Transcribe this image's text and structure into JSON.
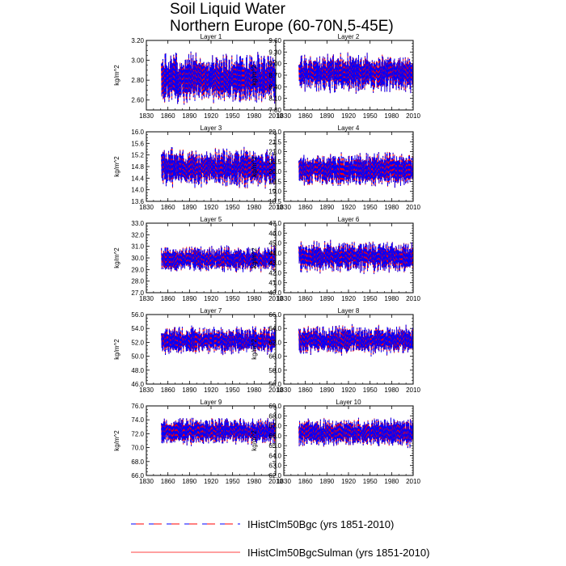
{
  "title": [
    "Soil Liquid Water",
    "Northern Europe (60-70N,5-45E)"
  ],
  "legend": [
    {
      "label": "IHistClm50Bgc (yrs 1851-2010)",
      "color": "#0000ff",
      "style": "dashed"
    },
    {
      "label": "IHistClm50BgcSulman (yrs 1851-2010)",
      "color": "#ff0000",
      "style": "solid"
    }
  ],
  "chart_data": [
    {
      "type": "line",
      "title": "Layer 1",
      "ylabel": "kg/m^2",
      "xlim": [
        1830,
        2010
      ],
      "xticks": [
        1830,
        1860,
        1890,
        1920,
        1950,
        1980,
        2010
      ],
      "xtick_labels": [
        "1830",
        "1860",
        "1890",
        "1920",
        "1950",
        "1980",
        "2010"
      ],
      "ylim": [
        2.5,
        3.2
      ],
      "yticks": [
        "2.60",
        "2.80",
        "3.00",
        "3.20"
      ],
      "ytick_vals": [
        2.6,
        2.8,
        3.0,
        3.2
      ],
      "x_start": 1851,
      "x_end": 2010,
      "series": [
        {
          "name": "IHistClm50Bgc (yrs 1851-2010)",
          "mean": 2.82,
          "amp": 0.22,
          "low": 2.52,
          "high": 3.13,
          "seed": 1
        },
        {
          "name": "IHistClm50BgcSulman (yrs 1851-2010)",
          "mean": 2.82,
          "amp": 0.22,
          "low": 2.52,
          "high": 3.13,
          "seed": 1
        }
      ]
    },
    {
      "type": "line",
      "title": "Layer 2",
      "ylabel": "kg/m^2",
      "xlim": [
        1830,
        2010
      ],
      "xticks": [
        1830,
        1860,
        1890,
        1920,
        1950,
        1980,
        2010
      ],
      "xtick_labels": [
        "1830",
        "1860",
        "1890",
        "1920",
        "1950",
        "1980",
        "2010"
      ],
      "ylim": [
        7.8,
        9.6
      ],
      "yticks": [
        "7.80",
        "8.10",
        "8.40",
        "8.70",
        "9.00",
        "9.30",
        "9.60"
      ],
      "ytick_vals": [
        7.8,
        8.1,
        8.4,
        8.7,
        9.0,
        9.3,
        9.6
      ],
      "x_start": 1851,
      "x_end": 2010,
      "series": [
        {
          "name": "IHistClm50Bgc (yrs 1851-2010)",
          "mean": 8.75,
          "amp": 0.45,
          "low": 8.0,
          "high": 9.5,
          "seed": 2
        },
        {
          "name": "IHistClm50BgcSulman (yrs 1851-2010)",
          "mean": 8.75,
          "amp": 0.45,
          "low": 8.0,
          "high": 9.5,
          "seed": 2
        }
      ]
    },
    {
      "type": "line",
      "title": "Layer 3",
      "ylabel": "kg/m^2",
      "xlim": [
        1830,
        2010
      ],
      "xticks": [
        1830,
        1860,
        1890,
        1920,
        1950,
        1980,
        2010
      ],
      "xtick_labels": [
        "1830",
        "1860",
        "1890",
        "1920",
        "1950",
        "1980",
        "2010"
      ],
      "ylim": [
        13.6,
        16.0
      ],
      "yticks": [
        "13.6",
        "14.0",
        "14.4",
        "14.8",
        "15.2",
        "15.6",
        "16.0"
      ],
      "ytick_vals": [
        13.6,
        14.0,
        14.4,
        14.8,
        15.2,
        15.6,
        16.0
      ],
      "x_start": 1851,
      "x_end": 2010,
      "series": [
        {
          "name": "IHistClm50Bgc (yrs 1851-2010)",
          "mean": 14.75,
          "amp": 0.6,
          "low": 13.8,
          "high": 15.9,
          "seed": 3
        },
        {
          "name": "IHistClm50BgcSulman (yrs 1851-2010)",
          "mean": 14.75,
          "amp": 0.6,
          "low": 13.8,
          "high": 15.9,
          "seed": 3
        }
      ]
    },
    {
      "type": "line",
      "title": "Layer 4",
      "ylabel": "kg/m^2",
      "xlim": [
        1830,
        2010
      ],
      "xticks": [
        1830,
        1860,
        1890,
        1920,
        1950,
        1980,
        2010
      ],
      "xtick_labels": [
        "1830",
        "1860",
        "1890",
        "1920",
        "1950",
        "1980",
        "2010"
      ],
      "ylim": [
        18.5,
        22.0
      ],
      "yticks": [
        "18.5",
        "19.0",
        "19.5",
        "20.0",
        "20.5",
        "21.0",
        "21.5",
        "22.0"
      ],
      "ytick_vals": [
        18.5,
        19.0,
        19.5,
        20.0,
        20.5,
        21.0,
        21.5,
        22.0
      ],
      "x_start": 1851,
      "x_end": 2010,
      "series": [
        {
          "name": "IHistClm50Bgc (yrs 1851-2010)",
          "mean": 20.1,
          "amp": 0.75,
          "low": 18.9,
          "high": 21.7,
          "seed": 4
        },
        {
          "name": "IHistClm50BgcSulman (yrs 1851-2010)",
          "mean": 20.1,
          "amp": 0.75,
          "low": 18.9,
          "high": 21.7,
          "seed": 4
        }
      ]
    },
    {
      "type": "line",
      "title": "Layer 5",
      "ylabel": "kg/m^2",
      "xlim": [
        1830,
        2010
      ],
      "xticks": [
        1830,
        1860,
        1890,
        1920,
        1950,
        1980,
        2010
      ],
      "xtick_labels": [
        "1830",
        "1860",
        "1890",
        "1920",
        "1950",
        "1980",
        "2010"
      ],
      "ylim": [
        27.0,
        33.0
      ],
      "yticks": [
        "27.0",
        "28.0",
        "29.0",
        "30.0",
        "31.0",
        "32.0",
        "33.0"
      ],
      "ytick_vals": [
        27,
        28,
        29,
        30,
        31,
        32,
        33
      ],
      "x_start": 1851,
      "x_end": 2010,
      "series": [
        {
          "name": "IHistClm50Bgc (yrs 1851-2010)",
          "mean": 29.9,
          "amp": 1.0,
          "low": 27.9,
          "high": 31.7,
          "seed": 5
        },
        {
          "name": "IHistClm50BgcSulman (yrs 1851-2010)",
          "mean": 29.9,
          "amp": 1.0,
          "low": 27.9,
          "high": 31.7,
          "seed": 5
        }
      ]
    },
    {
      "type": "line",
      "title": "Layer 6",
      "ylabel": "kg/m^2",
      "xlim": [
        1830,
        2010
      ],
      "xticks": [
        1830,
        1860,
        1890,
        1920,
        1950,
        1980,
        2010
      ],
      "xtick_labels": [
        "1830",
        "1860",
        "1890",
        "1920",
        "1950",
        "1980",
        "2010"
      ],
      "ylim": [
        40.0,
        47.0
      ],
      "yticks": [
        "40.0",
        "41.0",
        "42.0",
        "43.0",
        "44.0",
        "45.0",
        "46.0",
        "47.0"
      ],
      "ytick_vals": [
        40,
        41,
        42,
        43,
        44,
        45,
        46,
        47
      ],
      "x_start": 1851,
      "x_end": 2010,
      "series": [
        {
          "name": "IHistClm50Bgc (yrs 1851-2010)",
          "mean": 43.6,
          "amp": 1.4,
          "low": 40.7,
          "high": 46.3,
          "seed": 6
        },
        {
          "name": "IHistClm50BgcSulman (yrs 1851-2010)",
          "mean": 43.6,
          "amp": 1.4,
          "low": 40.7,
          "high": 46.3,
          "seed": 6
        }
      ]
    },
    {
      "type": "line",
      "title": "Layer 7",
      "ylabel": "kg/m^2",
      "xlim": [
        1830,
        2010
      ],
      "xticks": [
        1830,
        1860,
        1890,
        1920,
        1950,
        1980,
        2010
      ],
      "xtick_labels": [
        "1830",
        "1860",
        "1890",
        "1920",
        "1950",
        "1980",
        "2010"
      ],
      "ylim": [
        46.0,
        56.0
      ],
      "yticks": [
        "46.0",
        "48.0",
        "50.0",
        "52.0",
        "54.0",
        "56.0"
      ],
      "ytick_vals": [
        46,
        48,
        50,
        52,
        54,
        56
      ],
      "x_start": 1851,
      "x_end": 2010,
      "series": [
        {
          "name": "IHistClm50Bgc (yrs 1851-2010)",
          "mean": 52.3,
          "amp": 1.8,
          "low": 48.0,
          "high": 54.6,
          "seed": 7
        },
        {
          "name": "IHistClm50BgcSulman (yrs 1851-2010)",
          "mean": 52.3,
          "amp": 1.8,
          "low": 48.0,
          "high": 54.6,
          "seed": 7
        }
      ]
    },
    {
      "type": "line",
      "title": "Layer 8",
      "ylabel": "kg/m^2",
      "xlim": [
        1830,
        2010
      ],
      "xticks": [
        1830,
        1860,
        1890,
        1920,
        1950,
        1980,
        2010
      ],
      "xtick_labels": [
        "1830",
        "1860",
        "1890",
        "1920",
        "1950",
        "1980",
        "2010"
      ],
      "ylim": [
        56.0,
        66.0
      ],
      "yticks": [
        "56.0",
        "58.0",
        "60.0",
        "62.0",
        "64.0",
        "66.0"
      ],
      "ytick_vals": [
        56,
        58,
        60,
        62,
        64,
        66
      ],
      "x_start": 1851,
      "x_end": 2010,
      "series": [
        {
          "name": "IHistClm50Bgc (yrs 1851-2010)",
          "mean": 62.3,
          "amp": 1.9,
          "low": 58.0,
          "high": 64.8,
          "seed": 8
        },
        {
          "name": "IHistClm50BgcSulman (yrs 1851-2010)",
          "mean": 62.3,
          "amp": 1.9,
          "low": 58.0,
          "high": 64.8,
          "seed": 8
        }
      ]
    },
    {
      "type": "line",
      "title": "Layer 9",
      "ylabel": "kg/m^2",
      "xlim": [
        1830,
        2010
      ],
      "xticks": [
        1830,
        1860,
        1890,
        1920,
        1950,
        1980,
        2010
      ],
      "xtick_labels": [
        "1830",
        "1860",
        "1890",
        "1920",
        "1950",
        "1980",
        "2010"
      ],
      "ylim": [
        66.0,
        76.0
      ],
      "yticks": [
        "66.0",
        "68.0",
        "70.0",
        "72.0",
        "74.0",
        "76.0"
      ],
      "ytick_vals": [
        66,
        68,
        70,
        72,
        74,
        76
      ],
      "x_start": 1851,
      "x_end": 2010,
      "series": [
        {
          "name": "IHistClm50Bgc (yrs 1851-2010)",
          "mean": 72.3,
          "amp": 1.8,
          "low": 67.8,
          "high": 74.3,
          "seed": 9
        },
        {
          "name": "IHistClm50BgcSulman (yrs 1851-2010)",
          "mean": 72.3,
          "amp": 1.8,
          "low": 67.8,
          "high": 74.3,
          "seed": 9
        }
      ]
    },
    {
      "type": "line",
      "title": "Layer 10",
      "ylabel": "kg/m^2",
      "xlim": [
        1830,
        2010
      ],
      "xticks": [
        1830,
        1860,
        1890,
        1920,
        1950,
        1980,
        2010
      ],
      "xtick_labels": [
        "1830",
        "1860",
        "1890",
        "1920",
        "1950",
        "1980",
        "2010"
      ],
      "ylim": [
        62.0,
        69.0
      ],
      "yticks": [
        "62.0",
        "63.0",
        "64.0",
        "65.0",
        "66.0",
        "67.0",
        "68.0",
        "69.0"
      ],
      "ytick_vals": [
        62,
        63,
        64,
        65,
        66,
        67,
        68,
        69
      ],
      "x_start": 1851,
      "x_end": 2010,
      "series": [
        {
          "name": "IHistClm50Bgc (yrs 1851-2010)",
          "mean": 66.3,
          "amp": 1.3,
          "low": 62.9,
          "high": 68.1,
          "seed": 10
        },
        {
          "name": "IHistClm50BgcSulman (yrs 1851-2010)",
          "mean": 66.3,
          "amp": 1.3,
          "low": 62.9,
          "high": 68.1,
          "seed": 10
        }
      ]
    }
  ]
}
